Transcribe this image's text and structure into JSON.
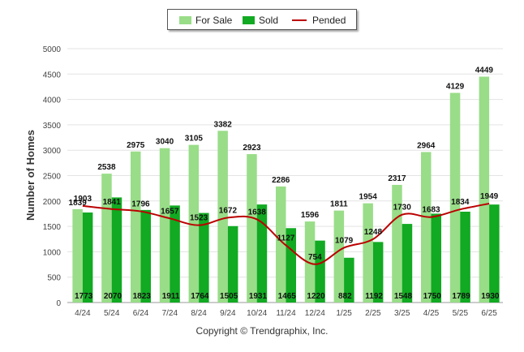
{
  "chart_data": {
    "type": "bar",
    "ylabel": "Number of Homes",
    "xlabel": "",
    "ylim": [
      0,
      5000
    ],
    "y_ticks": [
      0,
      500,
      1000,
      1500,
      2000,
      2500,
      3000,
      3500,
      4000,
      4500,
      5000
    ],
    "grid": "horizontal",
    "legend_position": "top-center",
    "categories": [
      "4/24",
      "5/24",
      "6/24",
      "7/24",
      "8/24",
      "9/24",
      "10/24",
      "11/24",
      "12/24",
      "1/25",
      "2/25",
      "3/25",
      "4/25",
      "5/25",
      "6/25"
    ],
    "series": [
      {
        "name": "For Sale",
        "type": "bar",
        "color": "#99dd88",
        "values": [
          1839,
          2538,
          2975,
          3040,
          3105,
          3382,
          2923,
          2286,
          1596,
          1811,
          1954,
          2317,
          2964,
          4129,
          4449
        ]
      },
      {
        "name": "Sold",
        "type": "bar",
        "color": "#11aa22",
        "values": [
          1773,
          2070,
          1823,
          1911,
          1764,
          1505,
          1931,
          1465,
          1220,
          882,
          1192,
          1548,
          1750,
          1789,
          1930
        ]
      },
      {
        "name": "Pended",
        "type": "line",
        "color": "#bb0000",
        "values": [
          1903,
          1841,
          1796,
          1657,
          1523,
          1672,
          1638,
          1127,
          754,
          1079,
          1248,
          1730,
          1683,
          1834,
          1949
        ]
      }
    ]
  },
  "legend": {
    "for_sale": "For Sale",
    "sold": "Sold",
    "pended": "Pended"
  },
  "footer": {
    "copyright": "Copyright © Trendgraphix, Inc."
  }
}
